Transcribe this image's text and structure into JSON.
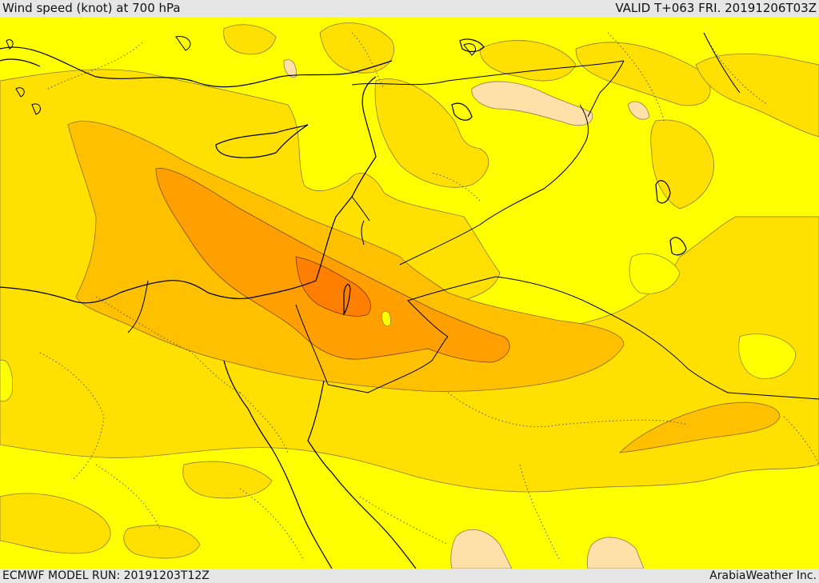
{
  "header": {
    "title": "Wind speed (knot) at 700 hPa",
    "valid_time": "VALID T+063 FRI. 20191206T03Z"
  },
  "footer": {
    "model_run": "ECMWF MODEL RUN: 20191203T12Z",
    "credit": "ArabiaWeather Inc."
  },
  "map": {
    "field": "wind speed",
    "level": "700 hPa",
    "fill_colors": {
      "weakest": "#ffe0a8",
      "light": "#ffff00",
      "moderate": "#ffe000",
      "strong": "#ffc000",
      "stronger": "#ffa000",
      "strongest": "#ff8000"
    },
    "line_colors": {
      "coastline": "#000000",
      "border": "#000000",
      "admin_boundary": "#555555"
    }
  }
}
